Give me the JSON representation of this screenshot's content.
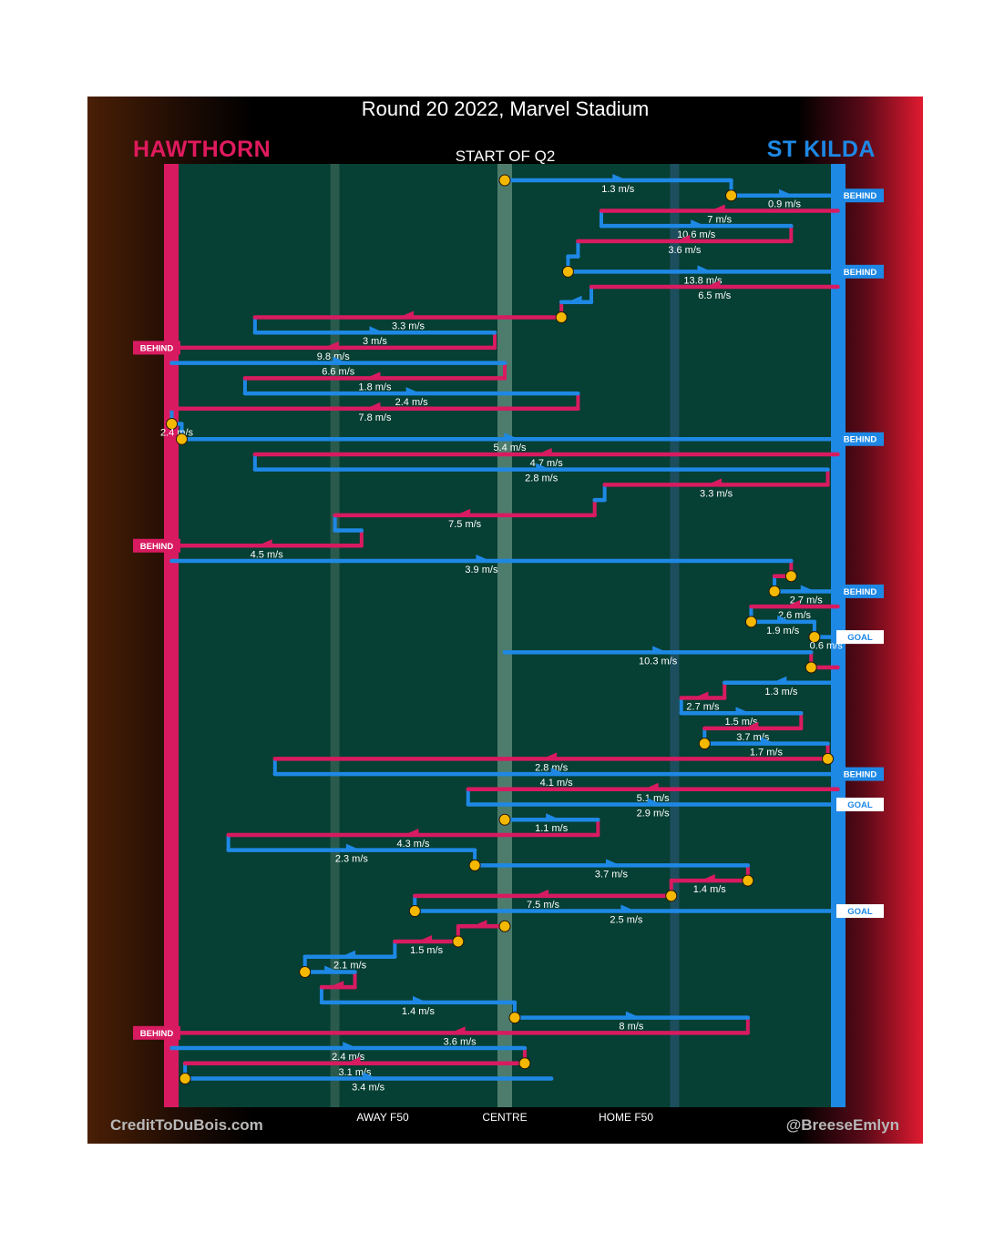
{
  "header": {
    "title": "Round 20 2022, Marvel Stadium",
    "home_team": "HAWTHORN",
    "away_team": "ST KILDA",
    "subtitle": "START OF Q2"
  },
  "footer": {
    "credit_left": "CreditToDuBois.com",
    "credit_right": "@BreeseEmlyn"
  },
  "colors": {
    "hawthorn": "#d81b60",
    "st_kilda": "#1e88e5",
    "field": "#063f33",
    "ball": "#f5b800"
  },
  "chart_data": {
    "type": "line",
    "x_axis": {
      "labels": [
        "AWAY F50",
        "CENTRE",
        "HOME F50"
      ],
      "positions": [
        -0.51,
        0,
        0.51
      ],
      "range": [
        -1,
        1
      ]
    },
    "tags": [
      "BEHIND",
      "GOAL"
    ],
    "series": [
      {
        "name": "HAWTHORN"
      },
      {
        "name": "ST KILDA"
      }
    ],
    "chains": [
      {
        "team": "St Kilda",
        "from": 0.0,
        "to": 0.68,
        "speed": "1.3 m/s",
        "start_ball": true
      },
      {
        "team": "St Kilda",
        "from": 0.68,
        "to": 1.0,
        "speed": "0.9 m/s",
        "start_ball": true,
        "tag": "BEHIND"
      },
      {
        "team": "Hawthorn",
        "from": 1.0,
        "to": 0.29,
        "speed": "7 m/s"
      },
      {
        "team": "St Kilda",
        "from": 0.29,
        "to": 0.86,
        "speed": "10.6 m/s"
      },
      {
        "team": "Hawthorn",
        "from": 0.86,
        "to": 0.22,
        "speed": "3.6 m/s"
      },
      {
        "team": "St Kilda",
        "from": 0.22,
        "to": 0.19,
        "speed": ""
      },
      {
        "team": "St Kilda",
        "from": 0.19,
        "to": 1.0,
        "speed": "13.8 m/s",
        "start_ball": true,
        "tag": "BEHIND"
      },
      {
        "team": "Hawthorn",
        "from": 1.0,
        "to": 0.26,
        "speed": "6.5 m/s"
      },
      {
        "team": "St Kilda",
        "from": 0.26,
        "to": 0.17,
        "speed": ""
      },
      {
        "team": "Hawthorn",
        "from": 0.17,
        "to": -0.75,
        "speed": "3.3 m/s",
        "start_ball": true
      },
      {
        "team": "St Kilda",
        "from": -0.75,
        "to": -0.03,
        "speed": "3 m/s"
      },
      {
        "team": "Hawthorn",
        "from": -0.03,
        "to": -1.0,
        "speed": "9.8 m/s",
        "tag": "BEHIND"
      },
      {
        "team": "St Kilda",
        "from": -1.0,
        "to": 0.0,
        "speed": "6.6 m/s"
      },
      {
        "team": "Hawthorn",
        "from": 0.0,
        "to": -0.78,
        "speed": "1.8 m/s"
      },
      {
        "team": "St Kilda",
        "from": -0.78,
        "to": 0.22,
        "speed": "2.4 m/s"
      },
      {
        "team": "Hawthorn",
        "from": 0.22,
        "to": -1.25,
        "speed": "7.8 m/s"
      },
      {
        "team": "St Kilda",
        "from": -1.25,
        "to": -0.97,
        "speed": "2.4 m/s",
        "start_ball": true
      },
      {
        "team": "St Kilda",
        "from": -0.97,
        "to": 1.0,
        "speed": "5.4 m/s",
        "start_ball": true,
        "tag": "BEHIND"
      },
      {
        "team": "Hawthorn",
        "from": 1.0,
        "to": -0.75,
        "speed": "4.7 m/s"
      },
      {
        "team": "St Kilda",
        "from": -0.75,
        "to": 0.97,
        "speed": "2.8 m/s"
      },
      {
        "team": "Hawthorn",
        "from": 0.97,
        "to": 0.3,
        "speed": "3.3 m/s"
      },
      {
        "team": "St Kilda",
        "from": 0.3,
        "to": 0.27,
        "speed": ""
      },
      {
        "team": "Hawthorn",
        "from": 0.27,
        "to": -0.51,
        "speed": "7.5 m/s"
      },
      {
        "team": "St Kilda",
        "from": -0.51,
        "to": -0.43,
        "speed": ""
      },
      {
        "team": "Hawthorn",
        "from": -0.43,
        "to": -1.0,
        "speed": "4.5 m/s",
        "tag": "BEHIND"
      },
      {
        "team": "St Kilda",
        "from": -1.0,
        "to": 0.86,
        "speed": "3.9 m/s"
      },
      {
        "team": "Hawthorn",
        "from": 0.86,
        "to": 0.81,
        "speed": "",
        "start_ball": true
      },
      {
        "team": "St Kilda",
        "from": 0.81,
        "to": 1.0,
        "speed": "2.7 m/s",
        "start_ball": true,
        "tag": "BEHIND"
      },
      {
        "team": "Hawthorn",
        "from": 1.0,
        "to": 0.74,
        "speed": "2.6 m/s"
      },
      {
        "team": "St Kilda",
        "from": 0.74,
        "to": 0.93,
        "speed": "1.9 m/s",
        "start_ball": true
      },
      {
        "team": "St Kilda",
        "from": 0.93,
        "to": 1.0,
        "speed": "0.6 m/s",
        "start_ball": true,
        "tag": "GOAL"
      },
      {
        "team": "St Kilda",
        "from": 0.0,
        "to": 0.92,
        "speed": "10.3 m/s"
      },
      {
        "team": "Hawthorn",
        "from": 0.92,
        "to": 1.0,
        "speed": "",
        "start_ball": true
      },
      {
        "team": "St Kilda",
        "from": 1.0,
        "to": 0.66,
        "speed": "1.3 m/s"
      },
      {
        "team": "Hawthorn",
        "from": 0.66,
        "to": 0.53,
        "speed": "2.7 m/s"
      },
      {
        "team": "St Kilda",
        "from": 0.53,
        "to": 0.89,
        "speed": "1.5 m/s"
      },
      {
        "team": "Hawthorn",
        "from": 0.89,
        "to": 0.6,
        "speed": "3.7 m/s"
      },
      {
        "team": "St Kilda",
        "from": 0.6,
        "to": 0.97,
        "speed": "1.7 m/s",
        "start_ball": true
      },
      {
        "team": "Hawthorn",
        "from": 0.97,
        "to": -0.69,
        "speed": "2.8 m/s",
        "start_ball": true
      },
      {
        "team": "St Kilda",
        "from": -0.69,
        "to": 1.0,
        "speed": "4.1 m/s",
        "tag": "BEHIND"
      },
      {
        "team": "Hawthorn",
        "from": 1.0,
        "to": -0.11,
        "speed": "5.1 m/s"
      },
      {
        "team": "St Kilda",
        "from": -0.11,
        "to": 1.0,
        "speed": "2.9 m/s",
        "tag": "GOAL"
      },
      {
        "team": "St Kilda",
        "from": 0.0,
        "to": 0.28,
        "speed": "1.1 m/s",
        "start_ball": true
      },
      {
        "team": "Hawthorn",
        "from": 0.28,
        "to": -0.83,
        "speed": "4.3 m/s"
      },
      {
        "team": "St Kilda",
        "from": -0.83,
        "to": -0.09,
        "speed": "2.3 m/s"
      },
      {
        "team": "St Kilda",
        "from": -0.09,
        "to": 0.73,
        "speed": "3.7 m/s",
        "start_ball": true
      },
      {
        "team": "Hawthorn",
        "from": 0.73,
        "to": 0.5,
        "speed": "1.4 m/s",
        "start_ball": true
      },
      {
        "team": "Hawthorn",
        "from": 0.5,
        "to": -0.27,
        "speed": "7.5 m/s",
        "start_ball": true
      },
      {
        "team": "St Kilda",
        "from": -0.27,
        "to": 1.0,
        "speed": "2.5 m/s",
        "start_ball": true,
        "tag": "GOAL"
      },
      {
        "team": "Hawthorn",
        "from": 0.0,
        "to": -0.14,
        "speed": "",
        "start_ball": true
      },
      {
        "team": "Hawthorn",
        "from": -0.14,
        "to": -0.33,
        "speed": "1.5 m/s",
        "start_ball": true
      },
      {
        "team": "St Kilda",
        "from": -0.33,
        "to": -0.6,
        "speed": "2.1 m/s"
      },
      {
        "team": "St Kilda",
        "from": -0.6,
        "to": -0.45,
        "speed": "",
        "start_ball": true
      },
      {
        "team": "Hawthorn",
        "from": -0.45,
        "to": -0.55,
        "speed": ""
      },
      {
        "team": "St Kilda",
        "from": -0.55,
        "to": 0.03,
        "speed": "1.4 m/s"
      },
      {
        "team": "St Kilda",
        "from": 0.03,
        "to": 0.73,
        "speed": "8 m/s",
        "start_ball": true
      },
      {
        "team": "Hawthorn",
        "from": 0.73,
        "to": -1.0,
        "speed": "3.6 m/s",
        "tag": "BEHIND"
      },
      {
        "team": "St Kilda",
        "from": -1.0,
        "to": 0.06,
        "speed": "2.4 m/s"
      },
      {
        "team": "Hawthorn",
        "from": 0.06,
        "to": -0.96,
        "speed": "3.1 m/s",
        "start_ball": true
      },
      {
        "team": "St Kilda",
        "from": -0.96,
        "to": 0.14,
        "speed": "3.4 m/s",
        "start_ball": true
      }
    ]
  }
}
